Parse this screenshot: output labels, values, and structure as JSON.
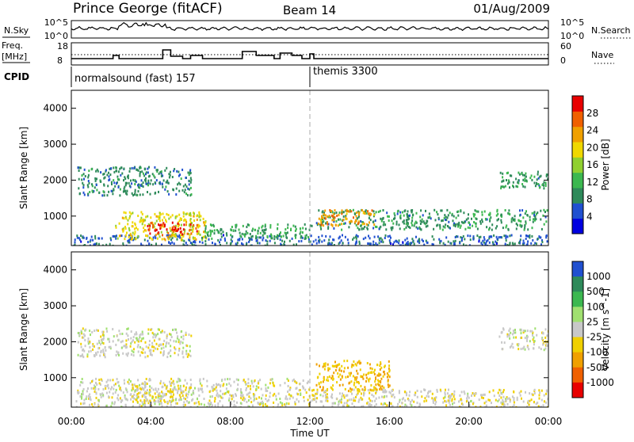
{
  "header": {
    "station": "Prince George (fitACF)",
    "beam": "Beam 14",
    "date": "01/Aug/2009"
  },
  "sky_panel": {
    "left_label": "N.Sky",
    "right_label": "N.Search",
    "left_ticks": [
      "10^5",
      "10^0"
    ],
    "right_ticks": [
      "10^5",
      "10^0"
    ]
  },
  "freq_panel": {
    "left_label_1": "Freq.",
    "left_label_2": "[MHz]",
    "right_label": "Nave",
    "left_ticks": [
      "18",
      "8"
    ],
    "right_ticks": [
      "60",
      "0"
    ]
  },
  "cpid_panel": {
    "label": "CPID",
    "segments": [
      {
        "name": "normalsound (fast) 157",
        "start": 0
      },
      {
        "name": "themis 3300",
        "start": 12
      }
    ]
  },
  "colors": {
    "axis": "#000000",
    "power_scale": [
      "#0000e0",
      "#2050d0",
      "#2e8a5a",
      "#3cb850",
      "#90d030",
      "#f0d800",
      "#f0a000",
      "#f06000",
      "#e80000"
    ],
    "velocity_scale": [
      "#e80000",
      "#f06000",
      "#f0a000",
      "#f0d000",
      "#c8c8c8",
      "#a0e070",
      "#3cb850",
      "#2e8a5a",
      "#2050d0"
    ]
  },
  "chart_data": [
    {
      "type": "heatmap",
      "title": "",
      "xlabel": "",
      "ylabel": "Slant Range [km]",
      "xlim": [
        0,
        24
      ],
      "ylim": [
        180,
        4500
      ],
      "yticks": [
        "1000",
        "2000",
        "3000",
        "4000"
      ],
      "colorbar_label": "Power [dB]",
      "colorbar_ticks": [
        "4",
        "8",
        "12",
        "16",
        "20",
        "24",
        "28"
      ],
      "color_range": [
        0,
        30
      ],
      "regions": [
        {
          "name": "near-range band",
          "x": [
            0.1,
            24
          ],
          "y": [
            180,
            500
          ],
          "value": 6
        },
        {
          "name": "morning echo",
          "x": [
            2.2,
            6.8
          ],
          "y": [
            350,
            1150
          ],
          "value": 18
        },
        {
          "name": "morning echo core",
          "x": [
            3.8,
            6.3
          ],
          "y": [
            500,
            850
          ],
          "value": 27
        },
        {
          "name": "ionospheric echo",
          "x": [
            6.5,
            12.1
          ],
          "y": [
            400,
            800
          ],
          "value": 10
        },
        {
          "name": "evening echo",
          "x": [
            12.3,
            24
          ],
          "y": [
            650,
            1200
          ],
          "value": 9
        },
        {
          "name": "evening echo core",
          "x": [
            12.4,
            15.2
          ],
          "y": [
            750,
            1200
          ],
          "value": 22
        },
        {
          "name": "far-range patches",
          "x": [
            0.3,
            6
          ],
          "y": [
            1600,
            2400
          ],
          "value": 8
        },
        {
          "name": "late far-range",
          "x": [
            21.5,
            24
          ],
          "y": [
            1800,
            2300
          ],
          "value": 9
        }
      ]
    },
    {
      "type": "heatmap",
      "title": "",
      "xlabel": "Time UT",
      "ylabel": "Slant Range [km]",
      "xlim": [
        0,
        24
      ],
      "ylim": [
        180,
        4500
      ],
      "xticks": [
        "00:00",
        "04:00",
        "08:00",
        "12:00",
        "16:00",
        "20:00",
        "00:00"
      ],
      "yticks": [
        "1000",
        "2000",
        "3000",
        "4000"
      ],
      "colorbar_label": "Velocity [m s^-1]",
      "colorbar_ticks": [
        "1000",
        "500",
        "100",
        "25",
        "-25",
        "-100",
        "-500",
        "-1000"
      ],
      "color_range": [
        -1000,
        1000
      ],
      "regions": [
        {
          "name": "ground scatter",
          "x": [
            0.2,
            12
          ],
          "y": [
            180,
            1000
          ],
          "value": 0
        },
        {
          "name": "morning flow",
          "x": [
            3,
            6
          ],
          "y": [
            350,
            800
          ],
          "value": -150
        },
        {
          "name": "evening flow",
          "x": [
            12.3,
            16
          ],
          "y": [
            650,
            1500
          ],
          "value": -300
        },
        {
          "name": "far-range ground scatter",
          "x": [
            0.3,
            6
          ],
          "y": [
            1600,
            2400
          ],
          "value": 0
        },
        {
          "name": "late far-range",
          "x": [
            21.5,
            24
          ],
          "y": [
            1800,
            2400
          ],
          "value": 0
        },
        {
          "name": "mixed scatter",
          "x": [
            12,
            24
          ],
          "y": [
            180,
            700
          ],
          "value": -50
        }
      ]
    }
  ]
}
